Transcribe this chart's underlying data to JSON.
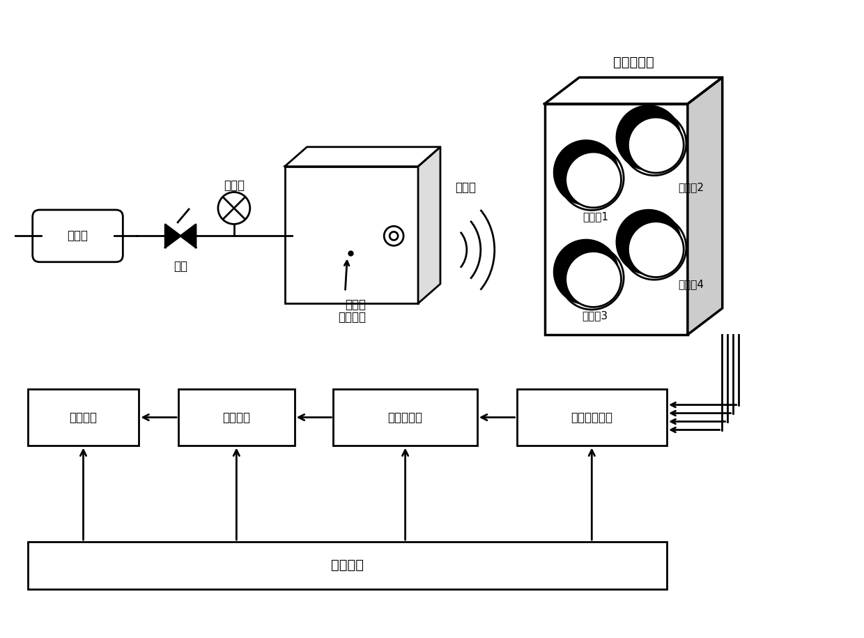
{
  "bg_color": "#ffffff",
  "line_color": "#000000",
  "labels": {
    "sensor_array": "传感器阵列",
    "sensor1": "传感器1",
    "sensor2": "传感器2",
    "sensor3": "传感器3",
    "sensor4": "传感器4",
    "ultrasound": "超声波",
    "pressure_vessel": "压力容器",
    "leak_hole": "泄漏孔",
    "pressure_gauge": "压力表",
    "valve": "闸阀",
    "gas_tank": "储气罐",
    "display": "显示设备",
    "single_board": "单板电脑",
    "data_acq": "数据采集卡",
    "signal_proc": "信号调理电路",
    "power": "电源部分"
  }
}
